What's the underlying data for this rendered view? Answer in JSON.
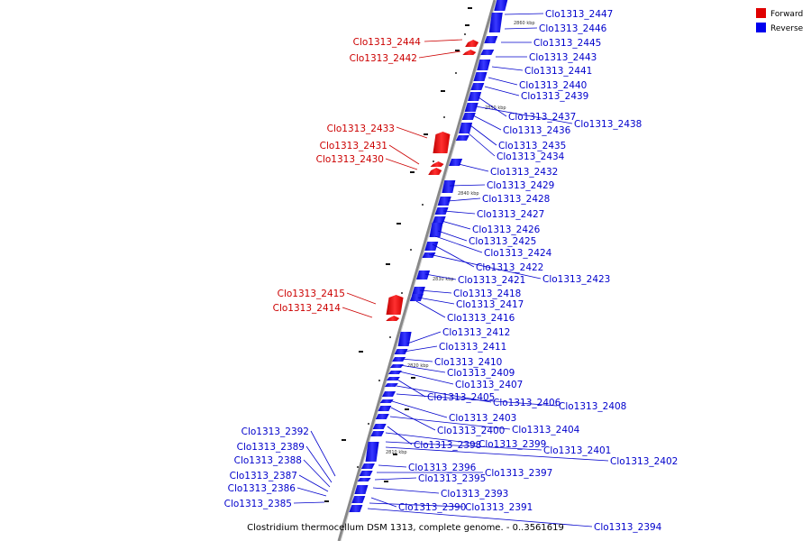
{
  "caption": "Clostridium thermocellum DSM 1313, complete genome. - 0..3561619",
  "legend": [
    {
      "label": "Forward",
      "color": "#e00000"
    },
    {
      "label": "Reverse",
      "color": "#0000ee"
    }
  ],
  "ticks": [
    "2860 kbp",
    "2850 kbp",
    "2840 kbp",
    "2830 kbp",
    "2820 kbp",
    "2810 kbp"
  ],
  "forward_genes": [
    "Clo1313_2444",
    "Clo1313_2442",
    "Clo1313_2433",
    "Clo1313_2431",
    "Clo1313_2430",
    "Clo1313_2415",
    "Clo1313_2414"
  ],
  "reverse_genes": [
    "Clo1313_2447",
    "Clo1313_2446",
    "Clo1313_2445",
    "Clo1313_2443",
    "Clo1313_2441",
    "Clo1313_2440",
    "Clo1313_2439",
    "Clo1313_2437",
    "Clo1313_2438",
    "Clo1313_2436",
    "Clo1313_2435",
    "Clo1313_2434",
    "Clo1313_2432",
    "Clo1313_2429",
    "Clo1313_2428",
    "Clo1313_2427",
    "Clo1313_2426",
    "Clo1313_2425",
    "Clo1313_2424",
    "Clo1313_2422",
    "Clo1313_2423",
    "Clo1313_2421",
    "Clo1313_2418",
    "Clo1313_2417",
    "Clo1313_2416",
    "Clo1313_2412",
    "Clo1313_2411",
    "Clo1313_2410",
    "Clo1313_2409",
    "Clo1313_2407",
    "Clo1313_2405",
    "Clo1313_2406",
    "Clo1313_2408",
    "Clo1313_2403",
    "Clo1313_2400",
    "Clo1313_2404",
    "Clo1313_2398",
    "Clo1313_2399",
    "Clo1313_2401",
    "Clo1313_2402",
    "Clo1313_2396",
    "Clo1313_2397",
    "Clo1313_2395",
    "Clo1313_2393",
    "Clo1313_2390",
    "Clo1313_2391",
    "Clo1313_2394",
    "Clo1313_2392",
    "Clo1313_2389",
    "Clo1313_2388",
    "Clo1313_2387",
    "Clo1313_2386",
    "Clo1313_2385"
  ]
}
